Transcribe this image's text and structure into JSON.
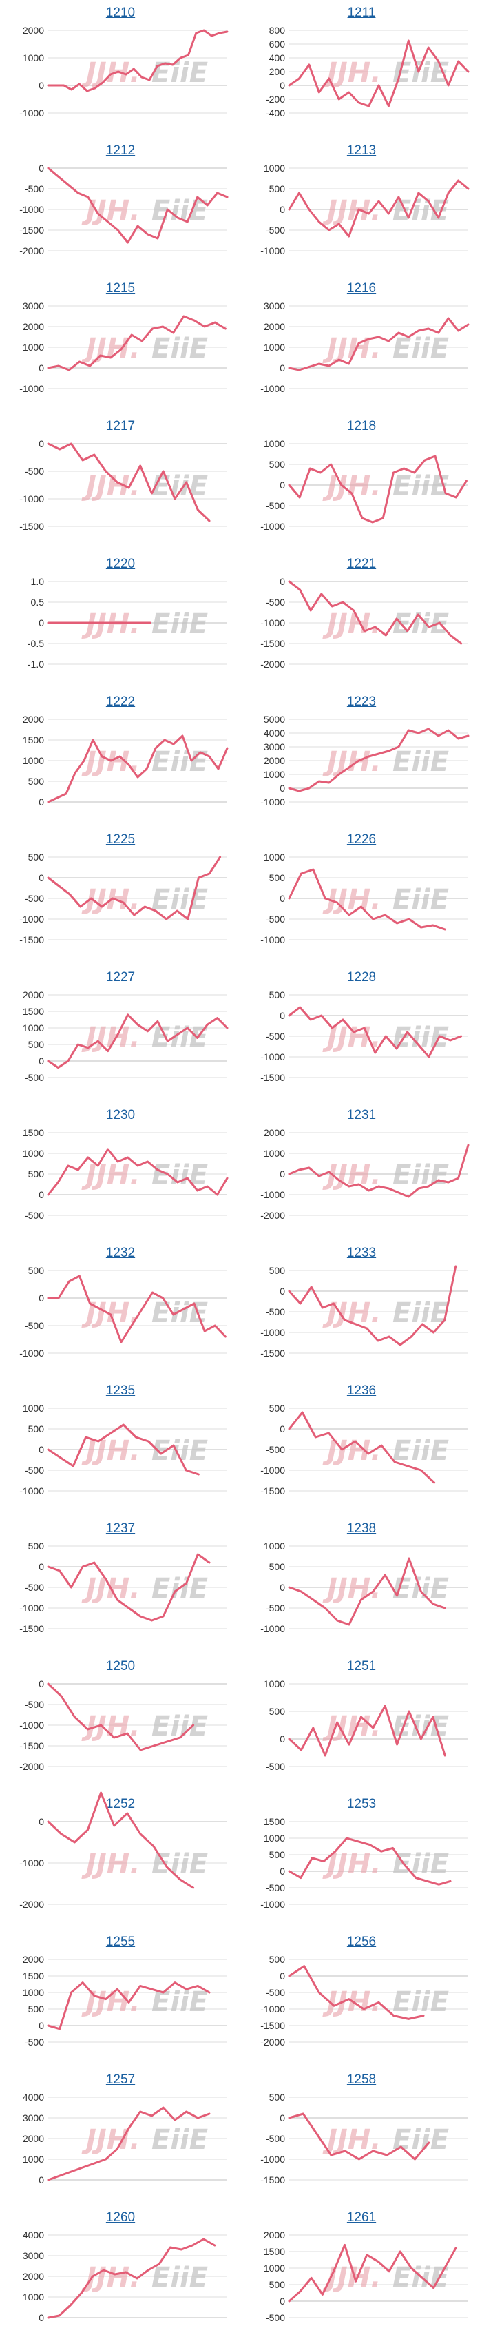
{
  "colors": {
    "line": "#e35d76",
    "grid": "#dddddd",
    "axis": "#bfbfbf",
    "title": "#1a5fa0",
    "watermark_red": "#e8a0a8",
    "watermark_gray": "#c0c0c0"
  },
  "watermark": {
    "part1": "JJH.",
    "part2": "EiiE"
  },
  "chart_data": [
    {
      "type": "line",
      "title": "1210",
      "yticks": [
        2000,
        1000,
        0,
        -1000
      ],
      "ylim": [
        -1000,
        2000
      ],
      "values": [
        0,
        0,
        0,
        -150,
        50,
        -200,
        -100,
        100,
        400,
        500,
        400,
        600,
        300,
        200,
        700,
        800,
        750,
        1000,
        1100,
        1900,
        2000,
        1800,
        1900,
        1950
      ]
    },
    {
      "type": "line",
      "title": "1211",
      "yticks": [
        800,
        600,
        400,
        200,
        0,
        -200,
        -400
      ],
      "ylim": [
        -400,
        800
      ],
      "values": [
        0,
        100,
        300,
        -100,
        100,
        -200,
        -100,
        -250,
        -300,
        0,
        -300,
        100,
        650,
        200,
        550,
        350,
        0,
        350,
        200
      ]
    },
    {
      "type": "line",
      "title": "1212",
      "yticks": [
        0,
        -500,
        -1000,
        -1500,
        -2000
      ],
      "ylim": [
        -2000,
        0
      ],
      "values": [
        0,
        -200,
        -400,
        -600,
        -700,
        -1100,
        -1300,
        -1500,
        -1800,
        -1400,
        -1600,
        -1700,
        -1000,
        -1200,
        -1300,
        -700,
        -900,
        -600,
        -700
      ]
    },
    {
      "type": "line",
      "title": "1213",
      "yticks": [
        1000,
        500,
        0,
        -500,
        -1000
      ],
      "ylim": [
        -1000,
        1000
      ],
      "values": [
        0,
        400,
        0,
        -300,
        -500,
        -350,
        -650,
        0,
        -100,
        200,
        -100,
        300,
        -200,
        400,
        200,
        -200,
        400,
        700,
        500
      ]
    },
    {
      "type": "line",
      "title": "1215",
      "yticks": [
        3000,
        2000,
        1000,
        0,
        -1000
      ],
      "ylim": [
        -1000,
        3000
      ],
      "values": [
        0,
        100,
        -100,
        300,
        100,
        600,
        500,
        900,
        1600,
        1300,
        1900,
        2000,
        1700,
        2500,
        2300,
        2000,
        2200,
        1900
      ]
    },
    {
      "type": "line",
      "title": "1216",
      "yticks": [
        3000,
        2000,
        1000,
        0,
        -1000
      ],
      "ylim": [
        -1000,
        3000
      ],
      "values": [
        0,
        -100,
        50,
        200,
        100,
        400,
        200,
        1200,
        1400,
        1500,
        1300,
        1700,
        1500,
        1800,
        1900,
        1700,
        2400,
        1800,
        2100
      ]
    },
    {
      "type": "line",
      "title": "1217",
      "yticks": [
        0,
        -500,
        -1000,
        -1500
      ],
      "ylim": [
        -1500,
        0
      ],
      "values": [
        0,
        -100,
        0,
        -300,
        -200,
        -500,
        -700,
        -800,
        -400,
        -900,
        -500,
        -1000,
        -700,
        -1200,
        -1400
      ]
    },
    {
      "type": "line",
      "title": "1218",
      "yticks": [
        1000,
        500,
        0,
        -500,
        -1000
      ],
      "ylim": [
        -1000,
        1000
      ],
      "values": [
        0,
        -300,
        400,
        300,
        500,
        0,
        -200,
        -800,
        -900,
        -800,
        300,
        400,
        300,
        600,
        700,
        -200,
        -300,
        100
      ]
    },
    {
      "type": "line",
      "title": "1220",
      "yticks": [
        "1.0",
        "0.5",
        "0",
        "-0.5",
        "-1.0"
      ],
      "ylim": [
        -1,
        1
      ],
      "values": [
        0,
        0,
        0,
        0
      ]
    },
    {
      "type": "line",
      "title": "1221",
      "yticks": [
        0,
        -500,
        -1000,
        -1500,
        -2000
      ],
      "ylim": [
        -2000,
        0
      ],
      "values": [
        0,
        -200,
        -700,
        -300,
        -600,
        -500,
        -700,
        -1200,
        -1100,
        -1300,
        -900,
        -1200,
        -800,
        -1100,
        -1000,
        -1300,
        -1500
      ]
    },
    {
      "type": "line",
      "title": "1222",
      "yticks": [
        2000,
        1500,
        1000,
        500,
        0
      ],
      "ylim": [
        0,
        2000
      ],
      "values": [
        0,
        100,
        200,
        700,
        1000,
        1500,
        1100,
        1000,
        1100,
        900,
        600,
        800,
        1300,
        1500,
        1400,
        1600,
        1000,
        1200,
        1100,
        800,
        1300
      ]
    },
    {
      "type": "line",
      "title": "1223",
      "yticks": [
        5000,
        4000,
        3000,
        2000,
        1000,
        0,
        -1000
      ],
      "ylim": [
        -1000,
        5000
      ],
      "values": [
        0,
        -200,
        0,
        500,
        400,
        1000,
        1500,
        2000,
        2300,
        2500,
        2700,
        3000,
        4200,
        4000,
        4300,
        3800,
        4200,
        3600,
        3800
      ]
    },
    {
      "type": "line",
      "title": "1225",
      "yticks": [
        500,
        0,
        -500,
        -1000,
        -1500
      ],
      "ylim": [
        -1500,
        500
      ],
      "values": [
        0,
        -200,
        -400,
        -700,
        -500,
        -700,
        -500,
        -600,
        -900,
        -700,
        -800,
        -1000,
        -800,
        -1000,
        0,
        100,
        500
      ]
    },
    {
      "type": "line",
      "title": "1226",
      "yticks": [
        1000,
        500,
        0,
        -500,
        -1000
      ],
      "ylim": [
        -1000,
        1000
      ],
      "values": [
        0,
        600,
        700,
        0,
        -100,
        -400,
        -200,
        -500,
        -400,
        -600,
        -500,
        -700,
        -650,
        -750
      ]
    },
    {
      "type": "line",
      "title": "1227",
      "yticks": [
        2000,
        1500,
        1000,
        500,
        0,
        -500
      ],
      "ylim": [
        -500,
        2000
      ],
      "values": [
        0,
        -200,
        0,
        500,
        400,
        600,
        300,
        800,
        1400,
        1100,
        900,
        1200,
        600,
        800,
        1000,
        700,
        1100,
        1300,
        1000
      ]
    },
    {
      "type": "line",
      "title": "1228",
      "yticks": [
        500,
        0,
        -500,
        -1000,
        -1500
      ],
      "ylim": [
        -1500,
        500
      ],
      "values": [
        0,
        200,
        -100,
        0,
        -300,
        -100,
        -400,
        -300,
        -900,
        -500,
        -800,
        -400,
        -700,
        -1000,
        -500,
        -600,
        -500
      ]
    },
    {
      "type": "line",
      "title": "1230",
      "yticks": [
        1500,
        1000,
        500,
        0,
        -500
      ],
      "ylim": [
        -500,
        1500
      ],
      "values": [
        0,
        300,
        700,
        600,
        900,
        700,
        1100,
        800,
        900,
        700,
        800,
        600,
        500,
        300,
        400,
        100,
        200,
        0,
        400
      ]
    },
    {
      "type": "line",
      "title": "1231",
      "yticks": [
        2000,
        1000,
        0,
        -1000,
        -2000
      ],
      "ylim": [
        -2000,
        2000
      ],
      "values": [
        0,
        200,
        300,
        -100,
        100,
        -300,
        -600,
        -500,
        -800,
        -600,
        -700,
        -900,
        -1100,
        -700,
        -600,
        -300,
        -400,
        -200,
        1400
      ]
    },
    {
      "type": "line",
      "title": "1232",
      "yticks": [
        500,
        0,
        -500,
        -1000
      ],
      "ylim": [
        -1000,
        500
      ],
      "values": [
        0,
        0,
        300,
        400,
        -100,
        -200,
        -300,
        -800,
        -500,
        -200,
        100,
        0,
        -300,
        -200,
        -100,
        -600,
        -500,
        -700
      ]
    },
    {
      "type": "line",
      "title": "1233",
      "yticks": [
        500,
        0,
        -500,
        -1000,
        -1500
      ],
      "ylim": [
        -1500,
        500
      ],
      "values": [
        0,
        -300,
        100,
        -400,
        -300,
        -700,
        -800,
        -900,
        -1200,
        -1100,
        -1300,
        -1100,
        -800,
        -1000,
        -700,
        600
      ]
    },
    {
      "type": "line",
      "title": "1235",
      "yticks": [
        1000,
        500,
        0,
        -500,
        -1000
      ],
      "ylim": [
        -1000,
        1000
      ],
      "values": [
        0,
        -200,
        -400,
        300,
        200,
        400,
        600,
        300,
        200,
        -100,
        100,
        -500,
        -600
      ]
    },
    {
      "type": "line",
      "title": "1236",
      "yticks": [
        500,
        0,
        -500,
        -1000,
        -1500
      ],
      "ylim": [
        -1500,
        500
      ],
      "values": [
        0,
        400,
        -200,
        -100,
        -500,
        -300,
        -600,
        -400,
        -800,
        -900,
        -1000,
        -1300
      ]
    },
    {
      "type": "line",
      "title": "1237",
      "yticks": [
        500,
        0,
        -500,
        -1000,
        -1500
      ],
      "ylim": [
        -1500,
        500
      ],
      "values": [
        0,
        -100,
        -500,
        0,
        100,
        -300,
        -800,
        -1000,
        -1200,
        -1300,
        -1200,
        -600,
        -400,
        300,
        100
      ]
    },
    {
      "type": "line",
      "title": "1238",
      "yticks": [
        1000,
        500,
        0,
        -500,
        -1000
      ],
      "ylim": [
        -1000,
        1000
      ],
      "values": [
        0,
        -100,
        -300,
        -500,
        -800,
        -900,
        -300,
        -100,
        300,
        -200,
        700,
        -100,
        -400,
        -500
      ]
    },
    {
      "type": "line",
      "title": "1250",
      "yticks": [
        0,
        -500,
        -1000,
        -1500,
        -2000
      ],
      "ylim": [
        -2000,
        0
      ],
      "values": [
        0,
        -300,
        -800,
        -1100,
        -1000,
        -1300,
        -1200,
        -1600,
        -1500,
        -1400,
        -1300,
        -1000
      ]
    },
    {
      "type": "line",
      "title": "1251",
      "yticks": [
        1000,
        500,
        0,
        -500
      ],
      "ylim": [
        -500,
        1000
      ],
      "values": [
        0,
        -200,
        200,
        -300,
        300,
        -100,
        400,
        200,
        600,
        -100,
        500,
        0,
        400,
        -300
      ]
    },
    {
      "type": "line",
      "title": "1252",
      "yticks": [
        0,
        -1000,
        -2000
      ],
      "ylim": [
        -2000,
        0
      ],
      "values": [
        0,
        -300,
        -500,
        -200,
        700,
        -100,
        200,
        -300,
        -600,
        -1100,
        -1400,
        -1600
      ]
    },
    {
      "type": "line",
      "title": "1253",
      "yticks": [
        1500,
        1000,
        500,
        0,
        -500,
        -1000
      ],
      "ylim": [
        -1000,
        1500
      ],
      "values": [
        0,
        -200,
        400,
        300,
        600,
        1000,
        900,
        800,
        600,
        700,
        200,
        -200,
        -300,
        -400,
        -300
      ]
    },
    {
      "type": "line",
      "title": "1255",
      "yticks": [
        2000,
        1500,
        1000,
        500,
        0,
        -500
      ],
      "ylim": [
        -500,
        2000
      ],
      "values": [
        0,
        -100,
        1000,
        1300,
        900,
        800,
        1100,
        700,
        1200,
        1100,
        1000,
        1300,
        1100,
        1200,
        1000
      ]
    },
    {
      "type": "line",
      "title": "1256",
      "yticks": [
        500,
        0,
        -500,
        -1000,
        -1500,
        -2000
      ],
      "ylim": [
        -2000,
        500
      ],
      "values": [
        0,
        300,
        -500,
        -900,
        -700,
        -1000,
        -800,
        -1200,
        -1300,
        -1200
      ]
    },
    {
      "type": "line",
      "title": "1257",
      "yticks": [
        4000,
        3000,
        2000,
        1000,
        0
      ],
      "ylim": [
        0,
        4000
      ],
      "values": [
        0,
        200,
        400,
        600,
        800,
        1000,
        1500,
        2500,
        3300,
        3100,
        3500,
        2900,
        3300,
        3000,
        3200
      ]
    },
    {
      "type": "line",
      "title": "1258",
      "yticks": [
        500,
        0,
        -500,
        -1000,
        -1500
      ],
      "ylim": [
        -1500,
        500
      ],
      "values": [
        0,
        100,
        -400,
        -900,
        -800,
        -1000,
        -800,
        -900,
        -700,
        -1000,
        -600
      ]
    },
    {
      "type": "line",
      "title": "1260",
      "yticks": [
        4000,
        3000,
        2000,
        1000,
        0
      ],
      "ylim": [
        0,
        4000
      ],
      "values": [
        0,
        100,
        600,
        1200,
        2000,
        2300,
        2100,
        2200,
        1900,
        2300,
        2600,
        3400,
        3300,
        3500,
        3800,
        3500
      ]
    },
    {
      "type": "line",
      "title": "1261",
      "yticks": [
        2000,
        1500,
        1000,
        500,
        0,
        -500
      ],
      "ylim": [
        -500,
        2000
      ],
      "values": [
        0,
        300,
        700,
        200,
        900,
        1700,
        600,
        1400,
        1200,
        900,
        1500,
        1000,
        700,
        400,
        1000,
        1600
      ]
    }
  ]
}
